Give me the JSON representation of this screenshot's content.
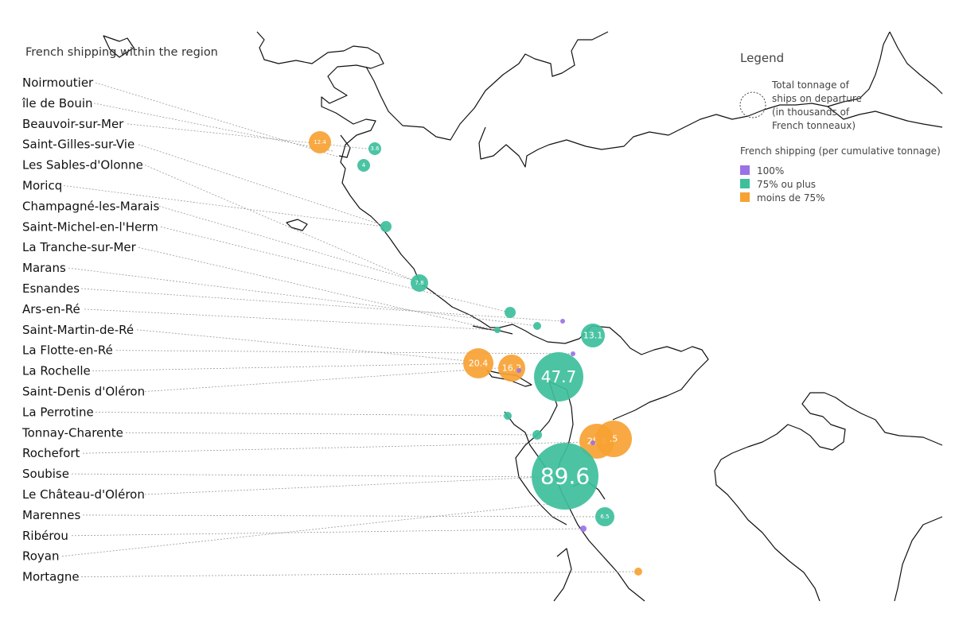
{
  "title": "French shipping within the region",
  "legend": {
    "title": "Legend",
    "size_note": [
      "Total tonnage of",
      "ships on departure",
      "(in thousands of",
      "French tonneaux)"
    ],
    "category_heading": "French shipping (per cumulative tonnage)",
    "categories": [
      {
        "label": "100%",
        "color": "#9b72e6"
      },
      {
        "label": "75% ou plus",
        "color": "#3dbf9c"
      },
      {
        "label": "moins de 75%",
        "color": "#f7a233"
      }
    ]
  },
  "ports": [
    {
      "name": "Noirmoutier"
    },
    {
      "name": "île de Bouin"
    },
    {
      "name": "Beauvoir-sur-Mer"
    },
    {
      "name": "Saint-Gilles-sur-Vie"
    },
    {
      "name": "Les Sables-d'Olonne"
    },
    {
      "name": "Moricq"
    },
    {
      "name": "Champagné-les-Marais"
    },
    {
      "name": "Saint-Michel-en-l'Herm"
    },
    {
      "name": "La Tranche-sur-Mer"
    },
    {
      "name": "Marans"
    },
    {
      "name": "Esnandes"
    },
    {
      "name": "Ars-en-Ré"
    },
    {
      "name": "Saint-Martin-de-Ré"
    },
    {
      "name": "La Flotte-en-Ré"
    },
    {
      "name": "La Rochelle"
    },
    {
      "name": "Saint-Denis d'Oléron"
    },
    {
      "name": "La Perrotine"
    },
    {
      "name": "Tonnay-Charente"
    },
    {
      "name": "Rochefort"
    },
    {
      "name": "Soubise"
    },
    {
      "name": "Le Château-d'Oléron"
    },
    {
      "name": "Marennes"
    },
    {
      "name": "Ribérou"
    },
    {
      "name": "Royan"
    },
    {
      "name": "Mortagne"
    }
  ],
  "bubbles": [
    {
      "label": "12.4",
      "category": "moins de 75%"
    },
    {
      "label": "3.6",
      "category": "75% ou plus"
    },
    {
      "label": "4",
      "category": "75% ou plus"
    },
    {
      "label": "",
      "category": "75% ou plus"
    },
    {
      "label": "7.8",
      "category": "75% ou plus"
    },
    {
      "label": "",
      "category": "75% ou plus"
    },
    {
      "label": "",
      "category": "75% ou plus"
    },
    {
      "label": "",
      "category": "75% ou plus"
    },
    {
      "label": "",
      "category": "100%"
    },
    {
      "label": "13.1",
      "category": "75% ou plus"
    },
    {
      "label": "",
      "category": "100%"
    },
    {
      "label": "20.4",
      "category": "moins de 75%"
    },
    {
      "label": "16.2",
      "category": "moins de 75%"
    },
    {
      "label": "",
      "category": "100%"
    },
    {
      "label": "47.7",
      "category": "75% ou plus"
    },
    {
      "label": "",
      "category": "75% ou plus"
    },
    {
      "label": "",
      "category": "75% ou plus"
    },
    {
      "label": "25.4",
      "category": "moins de 75%"
    },
    {
      "label": ".5",
      "category": "moins de 75%"
    },
    {
      "label": "",
      "category": "100%"
    },
    {
      "label": "89.6",
      "category": "75% ou plus"
    },
    {
      "label": "6.5",
      "category": "75% ou plus"
    },
    {
      "label": "",
      "category": "100%"
    },
    {
      "label": "",
      "category": "moins de 75%"
    }
  ]
}
